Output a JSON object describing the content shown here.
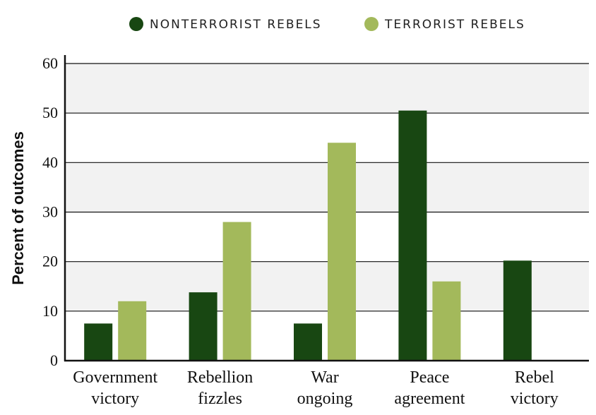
{
  "chart_data": {
    "type": "bar",
    "title": "",
    "xlabel": "",
    "ylabel": "Percent of outcomes",
    "ylim": [
      0,
      60
    ],
    "yticks": [
      0,
      10,
      20,
      30,
      40,
      50,
      60
    ],
    "grid": true,
    "legend_position": "top",
    "categories": [
      [
        "Government",
        "victory"
      ],
      [
        "Rebellion",
        "fizzles"
      ],
      [
        "War",
        "ongoing"
      ],
      [
        "Peace",
        "agreement"
      ],
      [
        "Rebel",
        "victory"
      ]
    ],
    "series": [
      {
        "name": "NONTERRORIST REBELS",
        "color": "#184712",
        "values": [
          7.5,
          13.8,
          7.5,
          50.5,
          20.2
        ]
      },
      {
        "name": "TERRORIST REBELS",
        "color": "#a3b95b",
        "values": [
          12,
          28,
          44,
          16,
          0
        ]
      }
    ]
  }
}
